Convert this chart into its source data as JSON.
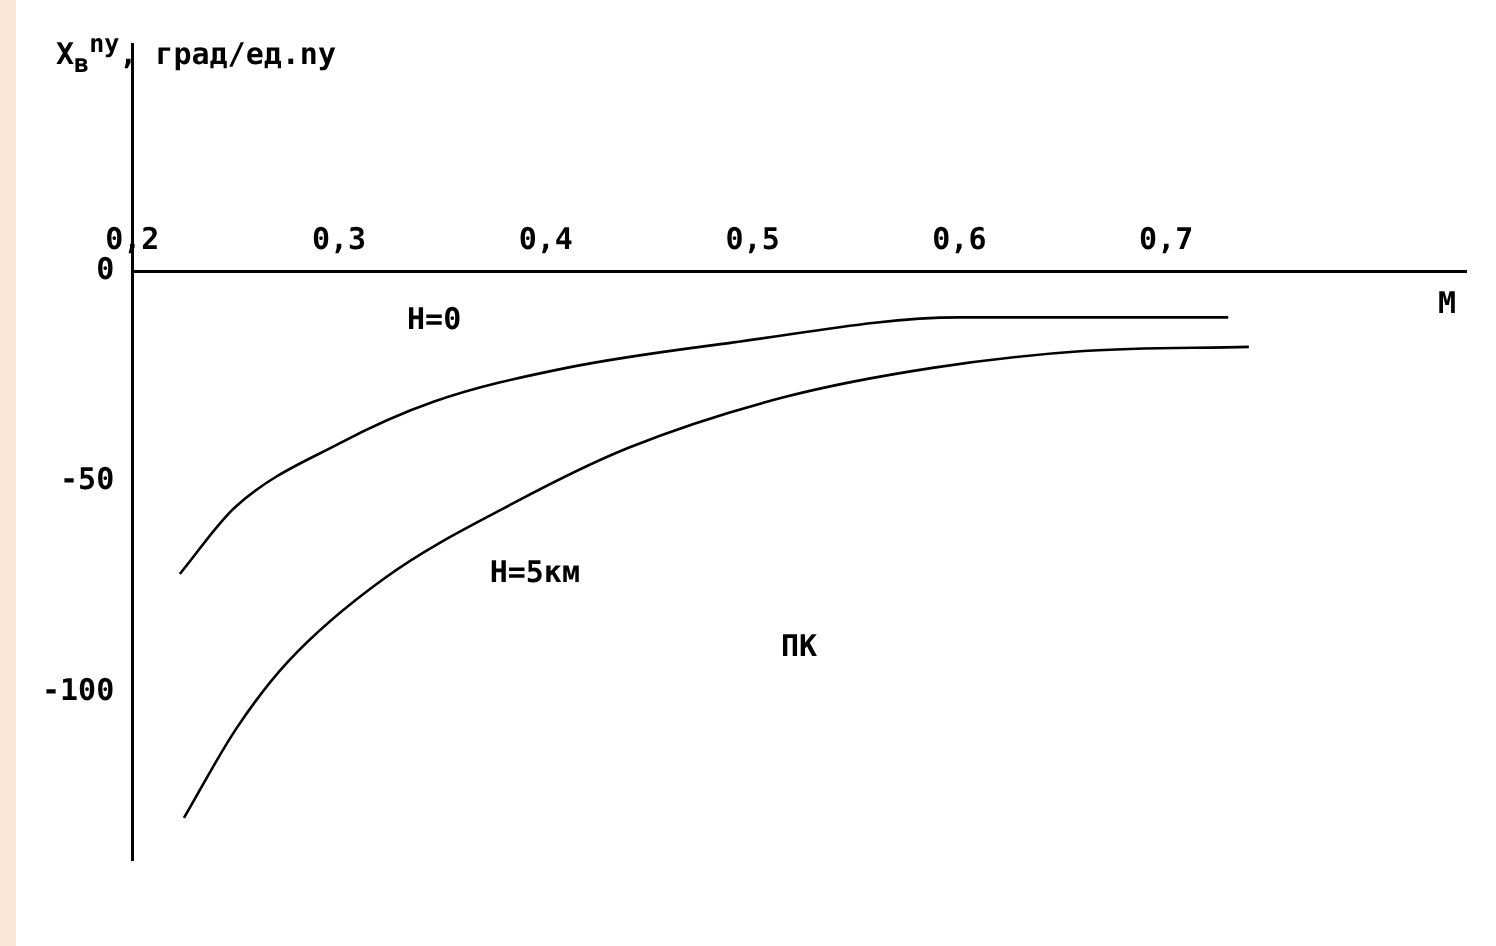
{
  "chart_data": {
    "type": "line",
    "ylabel": "X$_{в}$$^{nу}$, град/ед.nу",
    "xlabel": "M",
    "annotations": [
      "ПК"
    ],
    "xlim": [
      0.2,
      0.845
    ],
    "ylim": [
      -140,
      54
    ],
    "xticks": [
      {
        "value": 0.2,
        "label": "0,2"
      },
      {
        "value": 0.3,
        "label": "0,3"
      },
      {
        "value": 0.4,
        "label": "0,4"
      },
      {
        "value": 0.5,
        "label": "0,5"
      },
      {
        "value": 0.6,
        "label": "0,6"
      },
      {
        "value": 0.7,
        "label": "0,7"
      }
    ],
    "yticks": [
      0,
      -50,
      -100
    ],
    "series": [
      {
        "name": "H=0",
        "color": "#000000",
        "x": [
          0.223,
          0.25,
          0.3,
          0.346,
          0.41,
          0.49,
          0.6,
          0.73
        ],
        "values": [
          -72,
          -56,
          -41,
          -31,
          -23,
          -17,
          -11,
          -11
        ]
      },
      {
        "name": "H=5км",
        "color": "#000000",
        "x": [
          0.225,
          0.25,
          0.275,
          0.322,
          0.385,
          0.44,
          0.515,
          0.587,
          0.66,
          0.74
        ],
        "values": [
          -130,
          -109,
          -93,
          -73,
          -55,
          -42,
          -30,
          -23,
          -19,
          -18
        ]
      }
    ]
  }
}
